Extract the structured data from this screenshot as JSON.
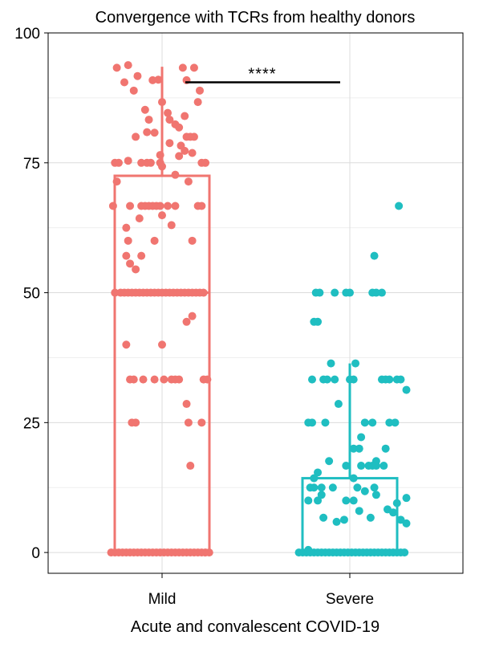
{
  "chart_data": {
    "type": "box",
    "title": "Convergence with TCRs from healthy donors",
    "xlabel": "Acute and convalescent COVID-19",
    "ylabel": "",
    "ylim": [
      -4,
      100
    ],
    "yticks": [
      "0",
      "25",
      "50",
      "75",
      "100"
    ],
    "yticks_values": [
      0,
      25,
      50,
      75,
      100
    ],
    "categories": [
      "Mild",
      "Severe"
    ],
    "colors": {
      "Mild": "#f07570",
      "Severe": "#1fbec1"
    },
    "grid": true,
    "significance": {
      "label": "****",
      "between": [
        "Mild",
        "Severe"
      ],
      "y": 90.5
    },
    "boxes": [
      {
        "group": "Mild",
        "min": 0,
        "q1": 0,
        "median": 50,
        "q3": 72.5,
        "max": 93.5
      },
      {
        "group": "Severe",
        "min": 0,
        "q1": 0,
        "median": 0,
        "q3": 14.3,
        "max": 36.4
      }
    ],
    "series": [
      {
        "name": "Mild",
        "points": [
          [
            -0.24,
            93.3
          ],
          [
            -0.18,
            93.8
          ],
          [
            -0.15,
            88.9
          ],
          [
            -0.2,
            90.5
          ],
          [
            -0.13,
            91.7
          ],
          [
            -0.05,
            90.9
          ],
          [
            -0.02,
            91.0
          ],
          [
            0.11,
            93.3
          ],
          [
            0.17,
            93.3
          ],
          [
            0.13,
            90.9
          ],
          [
            0.2,
            88.9
          ],
          [
            0.19,
            86.7
          ],
          [
            0.0,
            86.7
          ],
          [
            0.03,
            84.6
          ],
          [
            -0.09,
            85.2
          ],
          [
            -0.07,
            83.3
          ],
          [
            0.04,
            83.3
          ],
          [
            0.12,
            84.0
          ],
          [
            0.07,
            82.4
          ],
          [
            0.09,
            81.8
          ],
          [
            -0.04,
            80.8
          ],
          [
            -0.08,
            80.9
          ],
          [
            -0.14,
            80.0
          ],
          [
            0.13,
            80.0
          ],
          [
            0.15,
            80.0
          ],
          [
            0.17,
            80.0
          ],
          [
            0.04,
            78.8
          ],
          [
            0.1,
            78.3
          ],
          [
            0.12,
            77.3
          ],
          [
            0.16,
            76.9
          ],
          [
            0.09,
            76.3
          ],
          [
            -0.01,
            76.5
          ],
          [
            -0.25,
            75.0
          ],
          [
            -0.23,
            75.0
          ],
          [
            -0.11,
            75.0
          ],
          [
            -0.08,
            75.0
          ],
          [
            -0.06,
            75.0
          ],
          [
            -0.01,
            75.0
          ],
          [
            0.21,
            75.0
          ],
          [
            0.23,
            75.0
          ],
          [
            -0.18,
            75.4
          ],
          [
            0.0,
            74.3
          ],
          [
            0.14,
            71.4
          ],
          [
            -0.24,
            71.4
          ],
          [
            0.07,
            72.7
          ],
          [
            -0.26,
            66.7
          ],
          [
            -0.11,
            66.7
          ],
          [
            -0.09,
            66.7
          ],
          [
            -0.07,
            66.7
          ],
          [
            -0.05,
            66.7
          ],
          [
            -0.03,
            66.7
          ],
          [
            -0.01,
            66.7
          ],
          [
            0.03,
            66.7
          ],
          [
            0.07,
            66.7
          ],
          [
            0.19,
            66.7
          ],
          [
            0.21,
            66.7
          ],
          [
            -0.17,
            66.7
          ],
          [
            0.0,
            64.9
          ],
          [
            -0.12,
            64.3
          ],
          [
            -0.19,
            62.5
          ],
          [
            0.05,
            63.0
          ],
          [
            -0.18,
            60.0
          ],
          [
            -0.04,
            60.0
          ],
          [
            0.16,
            60.0
          ],
          [
            -0.19,
            57.1
          ],
          [
            -0.11,
            57.1
          ],
          [
            -0.17,
            55.6
          ],
          [
            -0.14,
            54.5
          ],
          [
            -0.25,
            50.0
          ],
          [
            -0.22,
            50.0
          ],
          [
            -0.2,
            50.0
          ],
          [
            -0.18,
            50.0
          ],
          [
            -0.16,
            50.0
          ],
          [
            -0.14,
            50.0
          ],
          [
            -0.12,
            50.0
          ],
          [
            -0.1,
            50.0
          ],
          [
            -0.08,
            50.0
          ],
          [
            -0.06,
            50.0
          ],
          [
            -0.04,
            50.0
          ],
          [
            -0.02,
            50.0
          ],
          [
            0.0,
            50.0
          ],
          [
            0.02,
            50.0
          ],
          [
            0.04,
            50.0
          ],
          [
            0.06,
            50.0
          ],
          [
            0.08,
            50.0
          ],
          [
            0.1,
            50.0
          ],
          [
            0.12,
            50.0
          ],
          [
            0.14,
            50.0
          ],
          [
            0.16,
            50.0
          ],
          [
            0.18,
            50.0
          ],
          [
            0.2,
            50.0
          ],
          [
            0.22,
            50.0
          ],
          [
            0.16,
            45.5
          ],
          [
            0.13,
            44.4
          ],
          [
            -0.19,
            40.0
          ],
          [
            0.0,
            40.0
          ],
          [
            -0.17,
            33.3
          ],
          [
            -0.15,
            33.3
          ],
          [
            -0.1,
            33.3
          ],
          [
            -0.04,
            33.3
          ],
          [
            0.01,
            33.3
          ],
          [
            0.05,
            33.3
          ],
          [
            0.07,
            33.3
          ],
          [
            0.09,
            33.3
          ],
          [
            0.22,
            33.3
          ],
          [
            0.24,
            33.3
          ],
          [
            0.13,
            28.6
          ],
          [
            -0.16,
            25.0
          ],
          [
            -0.14,
            25.0
          ],
          [
            0.14,
            25.0
          ],
          [
            0.21,
            25.0
          ],
          [
            0.15,
            16.7
          ],
          [
            -0.27,
            0
          ],
          [
            -0.25,
            0
          ],
          [
            -0.23,
            0
          ],
          [
            -0.21,
            0
          ],
          [
            -0.19,
            0
          ],
          [
            -0.17,
            0
          ],
          [
            -0.15,
            0
          ],
          [
            -0.13,
            0
          ],
          [
            -0.11,
            0
          ],
          [
            -0.09,
            0
          ],
          [
            -0.07,
            0
          ],
          [
            -0.05,
            0
          ],
          [
            -0.03,
            0
          ],
          [
            -0.01,
            0
          ],
          [
            0.01,
            0
          ],
          [
            0.03,
            0
          ],
          [
            0.05,
            0
          ],
          [
            0.07,
            0
          ],
          [
            0.09,
            0
          ],
          [
            0.11,
            0
          ],
          [
            0.13,
            0
          ],
          [
            0.15,
            0
          ],
          [
            0.17,
            0
          ],
          [
            0.19,
            0
          ],
          [
            0.21,
            0
          ],
          [
            0.23,
            0
          ],
          [
            0.25,
            0
          ]
        ]
      },
      {
        "name": "Severe",
        "points": [
          [
            0.26,
            66.7
          ],
          [
            0.13,
            57.1
          ],
          [
            -0.18,
            50.0
          ],
          [
            -0.16,
            50.0
          ],
          [
            -0.08,
            50.0
          ],
          [
            -0.02,
            50.0
          ],
          [
            0.0,
            50.0
          ],
          [
            0.12,
            50.0
          ],
          [
            0.14,
            50.0
          ],
          [
            0.17,
            50.0
          ],
          [
            -0.19,
            44.4
          ],
          [
            -0.17,
            44.4
          ],
          [
            -0.1,
            36.4
          ],
          [
            0.03,
            36.4
          ],
          [
            -0.2,
            33.3
          ],
          [
            -0.14,
            33.3
          ],
          [
            -0.12,
            33.3
          ],
          [
            -0.08,
            33.3
          ],
          [
            0.0,
            33.3
          ],
          [
            0.02,
            33.3
          ],
          [
            0.17,
            33.3
          ],
          [
            0.19,
            33.3
          ],
          [
            0.21,
            33.3
          ],
          [
            0.25,
            33.3
          ],
          [
            0.27,
            33.3
          ],
          [
            0.3,
            31.3
          ],
          [
            -0.06,
            28.6
          ],
          [
            -0.22,
            25.0
          ],
          [
            -0.2,
            25.0
          ],
          [
            -0.13,
            25.0
          ],
          [
            0.08,
            25.0
          ],
          [
            0.12,
            25.0
          ],
          [
            0.21,
            25.0
          ],
          [
            0.24,
            25.0
          ],
          [
            0.06,
            22.2
          ],
          [
            0.02,
            20.0
          ],
          [
            0.05,
            20.0
          ],
          [
            0.19,
            20.0
          ],
          [
            0.14,
            17.6
          ],
          [
            0.06,
            16.7
          ],
          [
            0.1,
            16.7
          ],
          [
            0.12,
            16.7
          ],
          [
            0.14,
            16.7
          ],
          [
            0.18,
            16.7
          ],
          [
            -0.11,
            17.6
          ],
          [
            -0.17,
            15.4
          ],
          [
            -0.02,
            16.7
          ],
          [
            -0.19,
            14.3
          ],
          [
            0.02,
            14.3
          ],
          [
            -0.19,
            12.5
          ],
          [
            -0.15,
            12.5
          ],
          [
            0.13,
            12.5
          ],
          [
            -0.09,
            12.5
          ],
          [
            0.08,
            11.8
          ],
          [
            0.04,
            12.5
          ],
          [
            0.3,
            10.5
          ],
          [
            -0.22,
            10.0
          ],
          [
            -0.17,
            10.0
          ],
          [
            -0.02,
            10.0
          ],
          [
            -0.15,
            11.1
          ],
          [
            0.02,
            10.0
          ],
          [
            0.14,
            11.1
          ],
          [
            0.25,
            9.5
          ],
          [
            0.2,
            8.3
          ],
          [
            0.23,
            7.7
          ],
          [
            0.05,
            8.0
          ],
          [
            -0.21,
            12.5
          ],
          [
            -0.14,
            6.7
          ],
          [
            0.27,
            6.3
          ],
          [
            -0.03,
            6.3
          ],
          [
            -0.07,
            5.9
          ],
          [
            0.3,
            5.6
          ],
          [
            0.11,
            6.7
          ],
          [
            -0.22,
            0.5
          ],
          [
            -0.27,
            0
          ],
          [
            -0.25,
            0
          ],
          [
            -0.23,
            0
          ],
          [
            -0.21,
            0
          ],
          [
            -0.19,
            0
          ],
          [
            -0.17,
            0
          ],
          [
            -0.15,
            0
          ],
          [
            -0.13,
            0
          ],
          [
            -0.11,
            0
          ],
          [
            -0.09,
            0
          ],
          [
            -0.07,
            0
          ],
          [
            -0.05,
            0
          ],
          [
            -0.03,
            0
          ],
          [
            -0.01,
            0
          ],
          [
            0.01,
            0
          ],
          [
            0.03,
            0
          ],
          [
            0.05,
            0
          ],
          [
            0.07,
            0
          ],
          [
            0.09,
            0
          ],
          [
            0.11,
            0
          ],
          [
            0.13,
            0
          ],
          [
            0.15,
            0
          ],
          [
            0.17,
            0
          ],
          [
            0.19,
            0
          ],
          [
            0.21,
            0
          ],
          [
            0.23,
            0
          ],
          [
            0.25,
            0
          ],
          [
            0.27,
            0
          ],
          [
            0.29,
            0
          ]
        ]
      }
    ]
  }
}
